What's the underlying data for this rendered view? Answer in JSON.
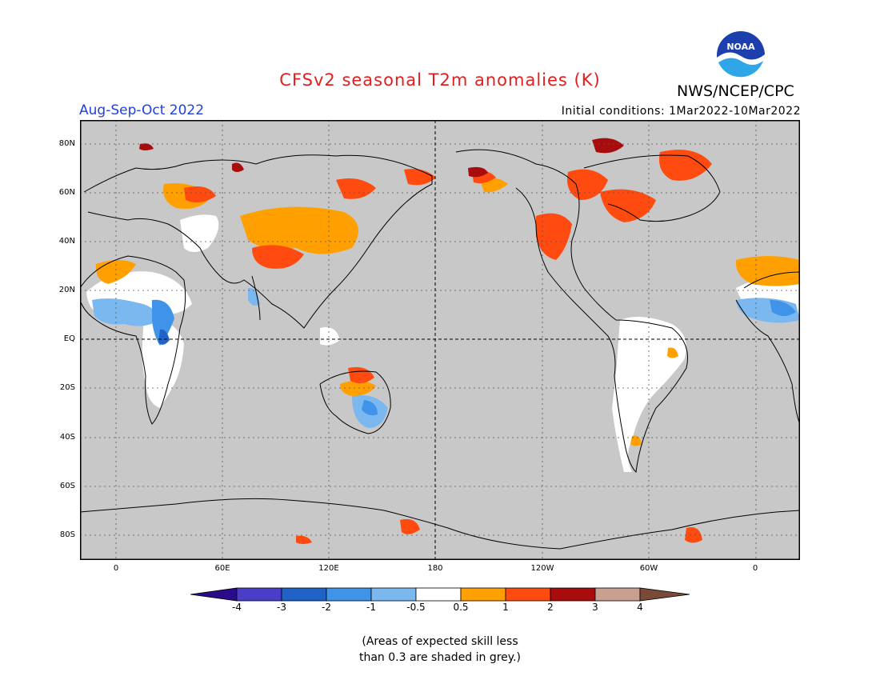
{
  "title": "CFSv2 seasonal T2m anomalies (K)",
  "org": "NWS/NCEP/CPC",
  "logo_text": "NOAA",
  "period": "Aug-Sep-Oct 2022",
  "initial_conditions": "Initial conditions: 1Mar2022-10Mar2022",
  "lat_labels": [
    "80N",
    "60N",
    "40N",
    "20N",
    "EQ",
    "20S",
    "40S",
    "60S",
    "80S"
  ],
  "lon_labels": [
    "0",
    "60E",
    "120E",
    "180",
    "120W",
    "60W",
    "0"
  ],
  "colorbar": {
    "ticks": [
      "-4",
      "-3",
      "-2",
      "-1",
      "-0.5",
      "0.5",
      "1",
      "2",
      "3",
      "4"
    ],
    "colors": [
      "#2a0c8a",
      "#4a3ec8",
      "#1f63c8",
      "#3f93e8",
      "#7cb8f0",
      "#ffffff",
      "#ffa000",
      "#ff4a10",
      "#a80c0c",
      "#c8a090",
      "#7a4a38"
    ]
  },
  "colors": {
    "ocean": "#c8c8c8",
    "land_nodata": "#ffffff"
  },
  "note_lines": [
    "(Areas of expected skill less",
    "than 0.3 are shaded in grey.)"
  ]
}
